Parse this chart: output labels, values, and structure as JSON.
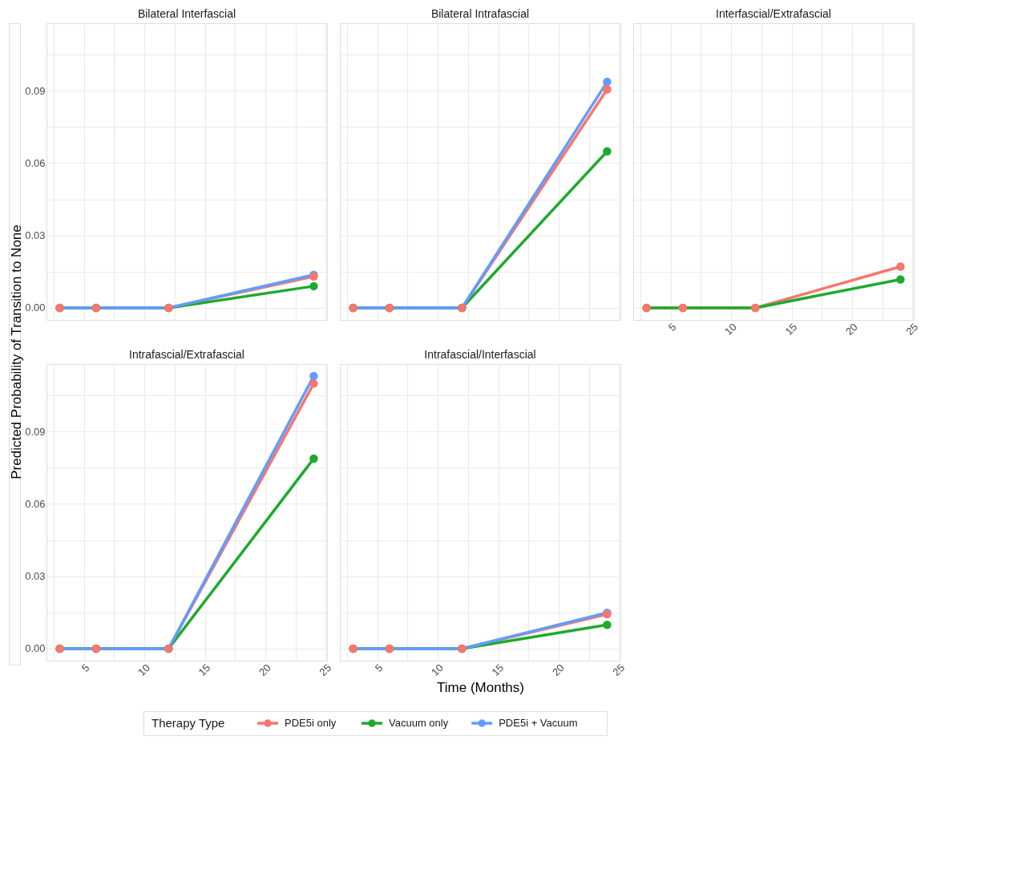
{
  "chart_data": [
    {
      "type": "line",
      "title": "Bilateral Interfascial",
      "legend": "bottom",
      "legend_title": "Therapy Type",
      "ylabel": "Predicted Probability of Transition to None",
      "x": [
        3,
        6,
        12,
        24
      ],
      "xlim": [
        1.9,
        25.1
      ],
      "ylim": [
        -0.005,
        0.118
      ],
      "xticks": [
        {
          "value": 2.5,
          "label": null
        },
        5,
        {
          "value": 7.5,
          "label": null
        },
        10,
        {
          "value": 12.5,
          "label": null
        },
        15,
        {
          "value": 17.5,
          "label": null
        },
        20,
        {
          "value": 22.5,
          "label": null
        },
        25
      ],
      "yticks": [
        {
          "value": 0,
          "label": "0.00"
        },
        {
          "value": 0.015,
          "label": null
        },
        0.03,
        {
          "value": 0.045,
          "label": null
        },
        0.06,
        {
          "value": 0.075,
          "label": null
        },
        0.09,
        {
          "value": 0.105,
          "label": null
        }
      ],
      "tick_labels": "y",
      "grid": true,
      "marker": "circle",
      "series": [
        {
          "name": "PDE5i only",
          "color": "#f8766d",
          "values": [
            0,
            0,
            0,
            0.013
          ]
        },
        {
          "name": "Vacuum only",
          "color": "#1eaa2e",
          "values": [
            0,
            0,
            0,
            0.009
          ]
        },
        {
          "name": "PDE5i + Vacuum",
          "color": "#619cff",
          "values": [
            0,
            0,
            0,
            0.0137
          ]
        }
      ]
    },
    {
      "type": "line",
      "title": "Bilateral Intrafascial",
      "x": [
        3,
        6,
        12,
        24
      ],
      "xlim": [
        1.9,
        25.1
      ],
      "ylim": [
        -0.005,
        0.118
      ],
      "xticks": [
        {
          "value": 2.5,
          "label": null
        },
        5,
        {
          "value": 7.5,
          "label": null
        },
        10,
        {
          "value": 12.5,
          "label": null
        },
        15,
        {
          "value": 17.5,
          "label": null
        },
        20,
        {
          "value": 22.5,
          "label": null
        },
        25
      ],
      "yticks": [
        0,
        {
          "value": 0.015,
          "label": null
        },
        0.03,
        {
          "value": 0.045,
          "label": null
        },
        0.06,
        {
          "value": 0.075,
          "label": null
        },
        0.09,
        {
          "value": 0.105,
          "label": null
        }
      ],
      "tick_labels": false,
      "grid": true,
      "marker": "circle",
      "series": [
        {
          "color": "#f8766d",
          "values": [
            0,
            0,
            0,
            0.0906
          ]
        },
        {
          "color": "#1eaa2e",
          "values": [
            0,
            0,
            0,
            0.0649
          ]
        },
        {
          "color": "#619cff",
          "values": [
            0,
            0,
            0,
            0.0937
          ]
        }
      ]
    },
    {
      "type": "line",
      "title": "Interfascial/Extrafascial",
      "x": [
        3,
        6,
        12,
        24
      ],
      "xlim": [
        1.9,
        25.1
      ],
      "ylim": [
        -0.005,
        0.118
      ],
      "xticks": [
        {
          "value": 2.5,
          "label": null
        },
        5,
        {
          "value": 7.5,
          "label": null
        },
        10,
        {
          "value": 12.5,
          "label": null
        },
        15,
        {
          "value": 17.5,
          "label": null
        },
        20,
        {
          "value": 22.5,
          "label": null
        },
        25
      ],
      "yticks": [
        0,
        {
          "value": 0.015,
          "label": null
        },
        0.03,
        {
          "value": 0.045,
          "label": null
        },
        0.06,
        {
          "value": 0.075,
          "label": null
        },
        0.09,
        {
          "value": 0.105,
          "label": null
        }
      ],
      "tick_labels": "x",
      "grid": true,
      "marker": "circle",
      "series": [
        {
          "color": "#f8766d",
          "values": [
            0,
            0,
            0,
            0.0171
          ]
        },
        {
          "color": "#1eaa2e",
          "values": [
            0,
            0,
            0,
            0.0118
          ]
        }
      ]
    },
    {
      "type": "line",
      "title": "Intrafascial/Extrafascial",
      "x": [
        3,
        6,
        12,
        24
      ],
      "xlim": [
        1.9,
        25.1
      ],
      "ylim": [
        -0.005,
        0.118
      ],
      "xticks": [
        {
          "value": 2.5,
          "label": null
        },
        5,
        {
          "value": 7.5,
          "label": null
        },
        10,
        {
          "value": 12.5,
          "label": null
        },
        15,
        {
          "value": 17.5,
          "label": null
        },
        20,
        {
          "value": 22.5,
          "label": null
        },
        25
      ],
      "yticks": [
        {
          "value": 0,
          "label": "0.00"
        },
        {
          "value": 0.015,
          "label": null
        },
        0.03,
        {
          "value": 0.045,
          "label": null
        },
        0.06,
        {
          "value": 0.075,
          "label": null
        },
        0.09,
        {
          "value": 0.105,
          "label": null
        }
      ],
      "grid": true,
      "marker": "circle",
      "series": [
        {
          "color": "#f8766d",
          "values": [
            0,
            0,
            0,
            0.1099
          ]
        },
        {
          "color": "#1eaa2e",
          "values": [
            0,
            0,
            0,
            0.0788
          ]
        },
        {
          "color": "#619cff",
          "values": [
            0,
            0,
            0,
            0.113
          ]
        }
      ]
    },
    {
      "type": "line",
      "title": "Intrafascial/Interfascial",
      "xlabel": "Time (Months)",
      "x": [
        3,
        6,
        12,
        24
      ],
      "xlim": [
        1.9,
        25.1
      ],
      "ylim": [
        -0.005,
        0.118
      ],
      "xticks": [
        {
          "value": 2.5,
          "label": null
        },
        5,
        {
          "value": 7.5,
          "label": null
        },
        10,
        {
          "value": 12.5,
          "label": null
        },
        15,
        {
          "value": 17.5,
          "label": null
        },
        20,
        {
          "value": 22.5,
          "label": null
        },
        25
      ],
      "yticks": [
        0,
        {
          "value": 0.015,
          "label": null
        },
        0.03,
        {
          "value": 0.045,
          "label": null
        },
        0.06,
        {
          "value": 0.075,
          "label": null
        },
        0.09,
        {
          "value": 0.105,
          "label": null
        }
      ],
      "tick_labels": "x",
      "grid": true,
      "marker": "circle",
      "series": [
        {
          "color": "#f8766d",
          "values": [
            0,
            0,
            0,
            0.0143
          ]
        },
        {
          "color": "#1eaa2e",
          "values": [
            0,
            0,
            0,
            0.0099
          ]
        },
        {
          "color": "#619cff",
          "values": [
            0,
            0,
            0,
            0.0149
          ]
        }
      ]
    }
  ]
}
